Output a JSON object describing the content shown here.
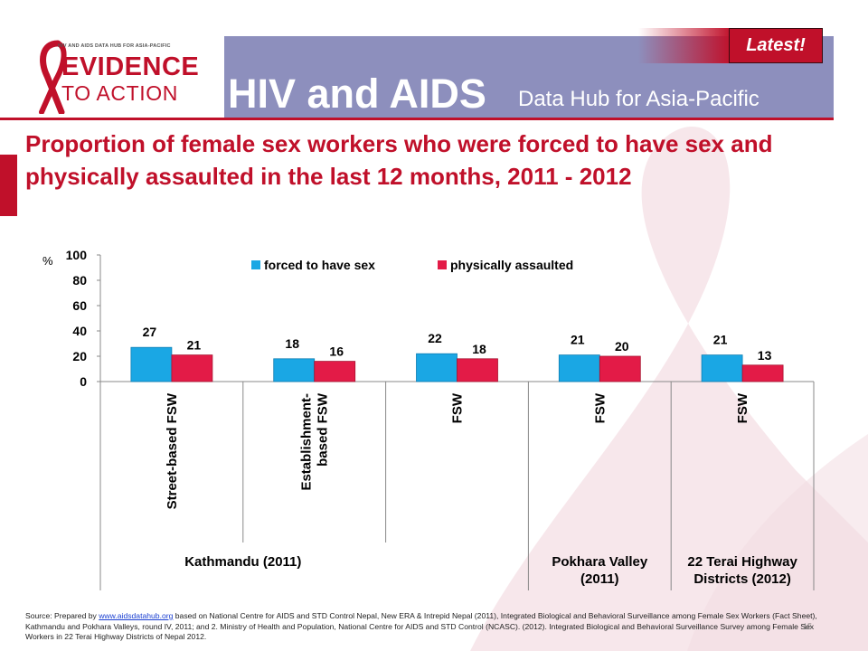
{
  "header": {
    "logo_tagline": "HIV AND AIDS DATA HUB FOR ASIA-PACIFIC",
    "logo_line1": "EVIDENCE",
    "logo_line2": "TO ACTION",
    "title": "HIV and AIDS",
    "subtitle": "Data Hub for Asia-Pacific",
    "latest_button": "Latest!"
  },
  "slide_title": "Proportion of female sex workers who were forced to have sex and physically assaulted in the last 12 months, 2011 - 2012",
  "chart_data": {
    "type": "bar",
    "ylabel": "%",
    "ylim": [
      0,
      100
    ],
    "yticks": [
      0,
      20,
      40,
      60,
      80,
      100
    ],
    "legend_position": "top",
    "categories": [
      "Street-based FSW",
      "Establishment-based FSW",
      "FSW",
      "FSW",
      "FSW"
    ],
    "category_label_lines": [
      [
        "Street-based FSW"
      ],
      [
        "Establishment-",
        "based FSW"
      ],
      [
        "FSW"
      ],
      [
        "FSW"
      ],
      [
        "FSW"
      ]
    ],
    "groups": [
      {
        "label_lines": [
          "Kathmandu (2011)"
        ],
        "span": [
          0,
          1
        ]
      },
      {
        "label_lines": [
          "Pokhara Valley",
          "(2011)"
        ],
        "span": [
          3,
          3
        ]
      },
      {
        "label_lines": [
          "22 Terai Highway",
          "Districts (2012)"
        ],
        "span": [
          4,
          4
        ]
      }
    ],
    "series": [
      {
        "name": "forced to have sex",
        "values": [
          27,
          18,
          22,
          21,
          21
        ],
        "color": "#1aa7e4"
      },
      {
        "name": "physically assaulted",
        "values": [
          21,
          16,
          18,
          20,
          13
        ],
        "color": "#e31b47"
      }
    ]
  },
  "source": {
    "prefix": "Source: Prepared by ",
    "link_text": "www.aidsdatahub.org",
    "text": " based on National Centre for AIDS and STD Control Nepal, New ERA & Intrepid Nepal (2011), Integrated Biological and Behavioral Surveillance among Female Sex Workers (Fact Sheet), Kathmandu and Pokhara Valleys, round IV, 2011; and 2. Ministry of Health and Population, National Centre for AIDS and STD Control (NCASC). (2012). Integrated Biological and Behavioral Surveillance Survey among Female Sex Workers in 22 Terai Highway Districts of Nepal 2012."
  },
  "page_number": "15",
  "colors": {
    "brand_red": "#c0102a",
    "header_purple": "#8d8fbd"
  }
}
